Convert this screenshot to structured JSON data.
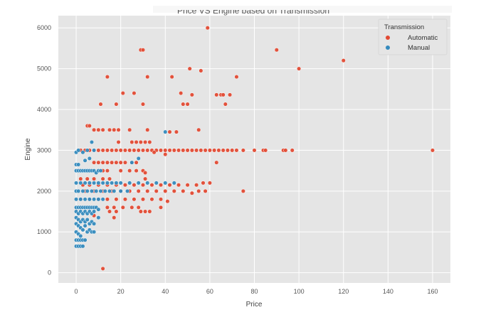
{
  "chart_data": {
    "type": "scatter",
    "title": "Price VS Engine based on Transmission",
    "xlabel": "Price",
    "ylabel": "Engine",
    "xlim": [
      -8,
      168
    ],
    "ylim": [
      -250,
      6300
    ],
    "xticks": [
      0,
      20,
      40,
      60,
      80,
      100,
      120,
      140,
      160
    ],
    "yticks": [
      0,
      1000,
      2000,
      3000,
      4000,
      5000,
      6000
    ],
    "grid": true,
    "legend": {
      "title": "Transmission",
      "placement": "top-right"
    },
    "series": [
      {
        "name": "Automatic",
        "color": "#e24a33",
        "points": [
          [
            12,
            100
          ],
          [
            59,
            6000
          ],
          [
            29,
            5460
          ],
          [
            30,
            5460
          ],
          [
            90,
            5460
          ],
          [
            100,
            5000
          ],
          [
            120,
            5200
          ],
          [
            160,
            3000
          ],
          [
            14,
            4800
          ],
          [
            32,
            4800
          ],
          [
            43,
            4800
          ],
          [
            51,
            5000
          ],
          [
            56,
            4950
          ],
          [
            72,
            4800
          ],
          [
            11,
            4130
          ],
          [
            18,
            4130
          ],
          [
            21,
            4400
          ],
          [
            26,
            4400
          ],
          [
            30,
            4130
          ],
          [
            47,
            4400
          ],
          [
            48,
            4130
          ],
          [
            50,
            4130
          ],
          [
            52,
            4360
          ],
          [
            63,
            4360
          ],
          [
            65,
            4360
          ],
          [
            66,
            4360
          ],
          [
            67,
            4130
          ],
          [
            69,
            4360
          ],
          [
            5,
            3600
          ],
          [
            6,
            3600
          ],
          [
            8,
            3500
          ],
          [
            10,
            3500
          ],
          [
            12,
            3500
          ],
          [
            15,
            3500
          ],
          [
            17,
            3500
          ],
          [
            19,
            3500
          ],
          [
            24,
            3500
          ],
          [
            32,
            3500
          ],
          [
            55,
            3500
          ],
          [
            42,
            3450
          ],
          [
            45,
            3450
          ],
          [
            2,
            3000
          ],
          [
            4,
            3000
          ],
          [
            6,
            3000
          ],
          [
            8,
            3000
          ],
          [
            10,
            3000
          ],
          [
            12,
            3000
          ],
          [
            14,
            3000
          ],
          [
            16,
            3000
          ],
          [
            18,
            3000
          ],
          [
            20,
            3000
          ],
          [
            22,
            3000
          ],
          [
            24,
            3000
          ],
          [
            26,
            3000
          ],
          [
            28,
            3000
          ],
          [
            30,
            3000
          ],
          [
            32,
            3000
          ],
          [
            34,
            3000
          ],
          [
            36,
            3000
          ],
          [
            38,
            3000
          ],
          [
            40,
            3000
          ],
          [
            42,
            3000
          ],
          [
            44,
            3000
          ],
          [
            46,
            3000
          ],
          [
            48,
            3000
          ],
          [
            50,
            3000
          ],
          [
            52,
            3000
          ],
          [
            54,
            3000
          ],
          [
            56,
            3000
          ],
          [
            58,
            3000
          ],
          [
            60,
            3000
          ],
          [
            62,
            3000
          ],
          [
            64,
            3000
          ],
          [
            66,
            3000
          ],
          [
            68,
            3000
          ],
          [
            70,
            3000
          ],
          [
            72,
            3000
          ],
          [
            75,
            3000
          ],
          [
            80,
            3000
          ],
          [
            84,
            3000
          ],
          [
            85,
            3000
          ],
          [
            93,
            3000
          ],
          [
            94,
            3000
          ],
          [
            97,
            3000
          ],
          [
            25,
            3200
          ],
          [
            27,
            3200
          ],
          [
            29,
            3200
          ],
          [
            31,
            3200
          ],
          [
            33,
            3200
          ],
          [
            19,
            3200
          ],
          [
            35,
            2950
          ],
          [
            40,
            2900
          ],
          [
            63,
            2700
          ],
          [
            8,
            2700
          ],
          [
            10,
            2700
          ],
          [
            12,
            2700
          ],
          [
            14,
            2700
          ],
          [
            16,
            2700
          ],
          [
            18,
            2700
          ],
          [
            20,
            2700
          ],
          [
            22,
            2700
          ],
          [
            25,
            2700
          ],
          [
            27,
            2700
          ],
          [
            12,
            2500
          ],
          [
            14,
            2500
          ],
          [
            20,
            2500
          ],
          [
            24,
            2500
          ],
          [
            27,
            2500
          ],
          [
            30,
            2500
          ],
          [
            31,
            2450
          ],
          [
            2,
            2300
          ],
          [
            5,
            2300
          ],
          [
            8,
            2300
          ],
          [
            12,
            2300
          ],
          [
            15,
            2300
          ],
          [
            31,
            2300
          ],
          [
            3,
            2150
          ],
          [
            6,
            2150
          ],
          [
            10,
            2150
          ],
          [
            14,
            2150
          ],
          [
            18,
            2150
          ],
          [
            22,
            2150
          ],
          [
            26,
            2150
          ],
          [
            30,
            2150
          ],
          [
            34,
            2150
          ],
          [
            38,
            2150
          ],
          [
            42,
            2150
          ],
          [
            46,
            2150
          ],
          [
            50,
            2150
          ],
          [
            54,
            2150
          ],
          [
            57,
            2200
          ],
          [
            60,
            2200
          ],
          [
            4,
            2000
          ],
          [
            8,
            2000
          ],
          [
            12,
            2000
          ],
          [
            16,
            2000
          ],
          [
            20,
            2000
          ],
          [
            24,
            2000
          ],
          [
            28,
            2000
          ],
          [
            32,
            2000
          ],
          [
            36,
            2000
          ],
          [
            40,
            2000
          ],
          [
            44,
            2000
          ],
          [
            48,
            2000
          ],
          [
            52,
            1950
          ],
          [
            55,
            2000
          ],
          [
            58,
            2000
          ],
          [
            75,
            2000
          ],
          [
            2,
            1800
          ],
          [
            6,
            1800
          ],
          [
            10,
            1800
          ],
          [
            14,
            1800
          ],
          [
            18,
            1800
          ],
          [
            22,
            1800
          ],
          [
            26,
            1800
          ],
          [
            30,
            1800
          ],
          [
            34,
            1800
          ],
          [
            38,
            1800
          ],
          [
            41,
            1750
          ],
          [
            14,
            1600
          ],
          [
            17,
            1600
          ],
          [
            21,
            1600
          ],
          [
            25,
            1600
          ],
          [
            28,
            1600
          ],
          [
            38,
            1600
          ],
          [
            15,
            1500
          ],
          [
            18,
            1500
          ],
          [
            29,
            1500
          ],
          [
            31,
            1500
          ],
          [
            33,
            1500
          ],
          [
            17,
            1350
          ],
          [
            8,
            1400
          ]
        ]
      },
      {
        "name": "Manual",
        "color": "#348abd",
        "points": [
          [
            40,
            3450
          ],
          [
            7,
            3200
          ],
          [
            0,
            2950
          ],
          [
            1,
            3000
          ],
          [
            3,
            2950
          ],
          [
            5,
            3000
          ],
          [
            8,
            3000
          ],
          [
            0,
            2500
          ],
          [
            1,
            2500
          ],
          [
            2,
            2500
          ],
          [
            3,
            2500
          ],
          [
            4,
            2500
          ],
          [
            5,
            2500
          ],
          [
            6,
            2500
          ],
          [
            7,
            2500
          ],
          [
            8,
            2500
          ],
          [
            9,
            2450
          ],
          [
            10,
            2500
          ],
          [
            11,
            2500
          ],
          [
            0,
            2650
          ],
          [
            1,
            2650
          ],
          [
            4,
            2750
          ],
          [
            6,
            2800
          ],
          [
            25,
            2700
          ],
          [
            28,
            2800
          ],
          [
            0,
            2200
          ],
          [
            2,
            2200
          ],
          [
            4,
            2200
          ],
          [
            6,
            2200
          ],
          [
            8,
            2200
          ],
          [
            10,
            2200
          ],
          [
            12,
            2200
          ],
          [
            14,
            2200
          ],
          [
            16,
            2200
          ],
          [
            18,
            2200
          ],
          [
            20,
            2200
          ],
          [
            24,
            2200
          ],
          [
            28,
            2200
          ],
          [
            32,
            2200
          ],
          [
            36,
            2200
          ],
          [
            40,
            2200
          ],
          [
            44,
            2200
          ],
          [
            0,
            2000
          ],
          [
            1,
            2000
          ],
          [
            3,
            2000
          ],
          [
            5,
            2000
          ],
          [
            7,
            2000
          ],
          [
            9,
            2000
          ],
          [
            11,
            2000
          ],
          [
            13,
            2000
          ],
          [
            15,
            2000
          ],
          [
            17,
            2000
          ],
          [
            20,
            2000
          ],
          [
            23,
            2000
          ],
          [
            0,
            1800
          ],
          [
            2,
            1800
          ],
          [
            4,
            1800
          ],
          [
            6,
            1800
          ],
          [
            8,
            1800
          ],
          [
            10,
            1800
          ],
          [
            12,
            1800
          ],
          [
            0,
            1600
          ],
          [
            1,
            1600
          ],
          [
            2,
            1600
          ],
          [
            3,
            1600
          ],
          [
            4,
            1600
          ],
          [
            5,
            1600
          ],
          [
            6,
            1600
          ],
          [
            7,
            1600
          ],
          [
            8,
            1600
          ],
          [
            9,
            1600
          ],
          [
            10,
            1550
          ],
          [
            0,
            1500
          ],
          [
            1,
            1450
          ],
          [
            2,
            1500
          ],
          [
            3,
            1450
          ],
          [
            4,
            1500
          ],
          [
            5,
            1450
          ],
          [
            6,
            1500
          ],
          [
            7,
            1450
          ],
          [
            8,
            1500
          ],
          [
            10,
            1350
          ],
          [
            0,
            1350
          ],
          [
            1,
            1300
          ],
          [
            2,
            1250
          ],
          [
            3,
            1300
          ],
          [
            4,
            1250
          ],
          [
            5,
            1300
          ],
          [
            6,
            1200
          ],
          [
            7,
            1250
          ],
          [
            8,
            1200
          ],
          [
            0,
            1200
          ],
          [
            1,
            1150
          ],
          [
            2,
            1100
          ],
          [
            3,
            1050
          ],
          [
            4,
            1150
          ],
          [
            5,
            1000
          ],
          [
            6,
            1050
          ],
          [
            7,
            1000
          ],
          [
            8,
            1000
          ],
          [
            0,
            1000
          ],
          [
            1,
            950
          ],
          [
            2,
            900
          ],
          [
            0,
            800
          ],
          [
            1,
            800
          ],
          [
            2,
            800
          ],
          [
            3,
            800
          ],
          [
            4,
            800
          ],
          [
            0,
            650
          ],
          [
            1,
            650
          ],
          [
            2,
            650
          ],
          [
            3,
            650
          ]
        ]
      }
    ]
  }
}
